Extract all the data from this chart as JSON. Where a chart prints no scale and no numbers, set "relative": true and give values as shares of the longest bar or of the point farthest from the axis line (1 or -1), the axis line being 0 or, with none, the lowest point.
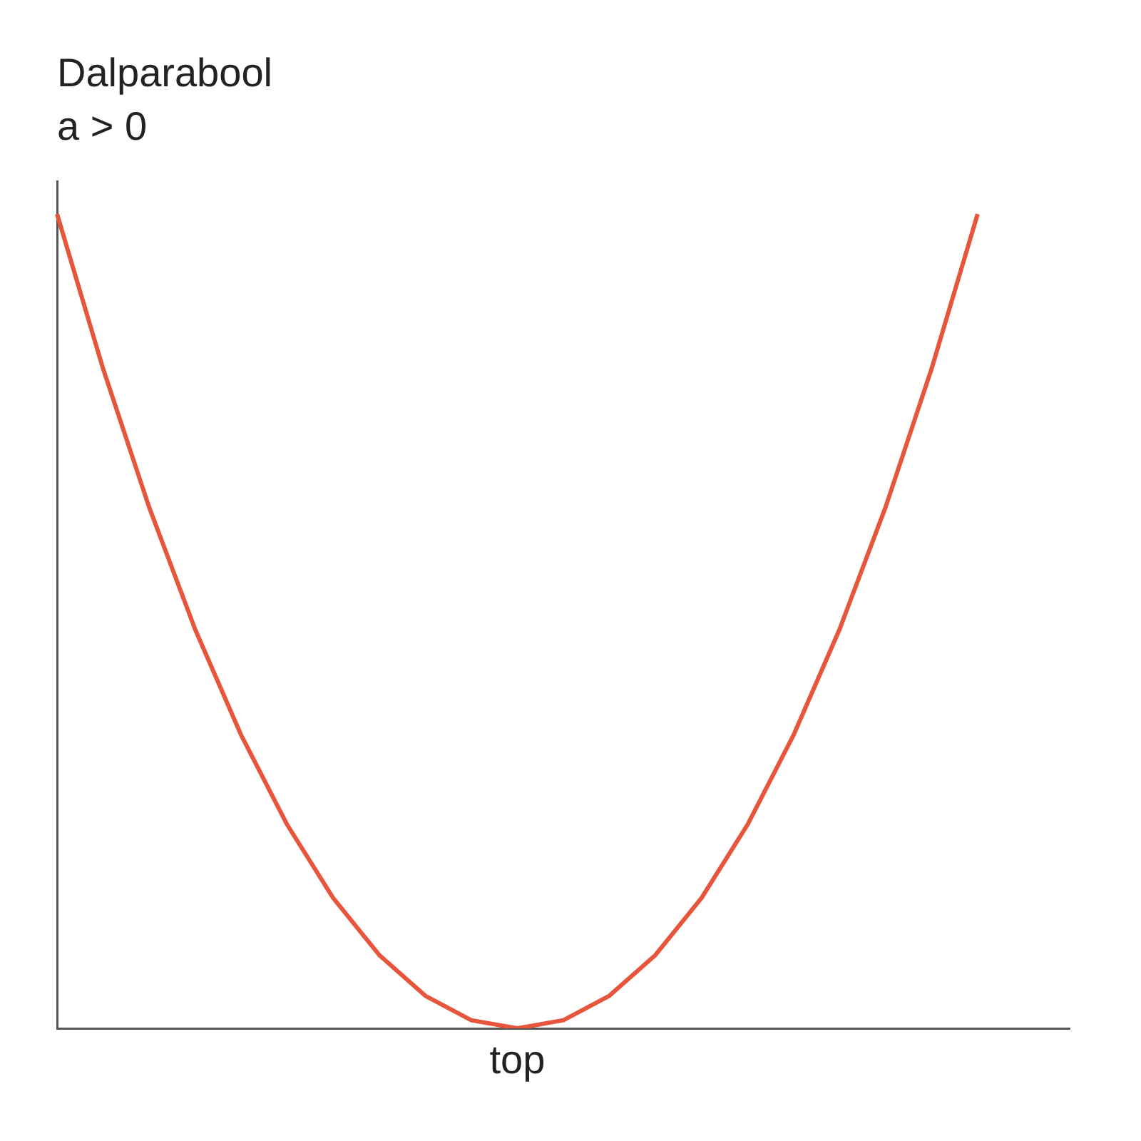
{
  "chart_data": {
    "type": "line",
    "title": "Dalparabool",
    "subtitle": "a > 0",
    "categories": [
      null,
      null,
      null,
      null,
      null,
      null,
      null,
      null,
      null,
      null,
      null,
      null,
      null,
      null,
      null,
      null,
      null,
      null,
      null,
      null,
      null,
      null,
      null
    ],
    "annotations": [
      {
        "text": "top",
        "y": 0
      }
    ],
    "series": [
      {
        "color": "#e8553d",
        "values": [
          1,
          0.81,
          0.64,
          0.49,
          0.36,
          0.25,
          0.16,
          0.09,
          0.04,
          0.01,
          0,
          0.01,
          0.04,
          0.09,
          0.16,
          0.25,
          0.36,
          0.49,
          0.64,
          0.81,
          1,
          null,
          null
        ]
      }
    ],
    "relative": true,
    "grid": false,
    "legend": false,
    "marker": "none",
    "line_style": "solid"
  }
}
